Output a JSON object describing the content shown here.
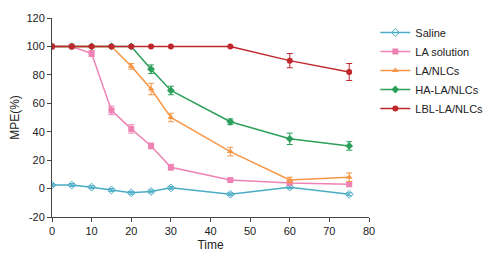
{
  "chart_data": {
    "type": "line",
    "x_label": "Time",
    "y_label": "MPE(%)",
    "xlim": [
      0,
      80
    ],
    "xticks": [
      0,
      10,
      20,
      30,
      40,
      50,
      60,
      70,
      80
    ],
    "ylim": [
      -20,
      120
    ],
    "yticks": [
      -20,
      0,
      20,
      40,
      60,
      80,
      100,
      120
    ],
    "grid": false,
    "legend": "right",
    "x": [
      0,
      5,
      10,
      15,
      20,
      25,
      30,
      45,
      60,
      75
    ],
    "series": [
      {
        "name": "Saline",
        "color": "#4bacc6",
        "marker": "diamond-open",
        "line_style": "solid",
        "values": [
          2.5,
          2.5,
          1,
          -1,
          -3,
          -2,
          0.5,
          -4,
          1,
          -4
        ],
        "errors": [
          1,
          1,
          1,
          1,
          1,
          1,
          1,
          1,
          1,
          1
        ]
      },
      {
        "name": "LA solution",
        "color": "#ee82b4",
        "marker": "square",
        "line_style": "solid",
        "values": [
          100,
          100,
          95,
          55,
          42,
          30,
          15,
          6,
          4,
          3
        ],
        "errors": [
          0,
          0,
          2,
          3,
          3,
          2,
          2,
          1,
          1,
          1
        ]
      },
      {
        "name": "LA/NLCs",
        "color": "#f79646",
        "marker": "triangle-up",
        "line_style": "solid",
        "values": [
          100,
          100,
          100,
          100,
          86,
          70,
          50,
          26,
          6,
          8
        ],
        "errors": [
          0,
          0,
          0,
          0,
          2,
          4,
          3,
          3,
          2,
          3
        ]
      },
      {
        "name": "HA-LA/NLCs",
        "color": "#2ca05a",
        "marker": "diamond",
        "line_style": "solid",
        "values": [
          100,
          100,
          100,
          100,
          100,
          84,
          69,
          47,
          35,
          30
        ],
        "errors": [
          0,
          0,
          0,
          0,
          0,
          3,
          3,
          2,
          4,
          3
        ]
      },
      {
        "name": "LBL-LA/NLCs",
        "color": "#c0272d",
        "marker": "circle",
        "line_style": "solid",
        "values": [
          100,
          100,
          100,
          100,
          100,
          100,
          100,
          100,
          90,
          82
        ],
        "errors": [
          0,
          0,
          0,
          0,
          0,
          0,
          0,
          0,
          5,
          6
        ]
      }
    ]
  }
}
